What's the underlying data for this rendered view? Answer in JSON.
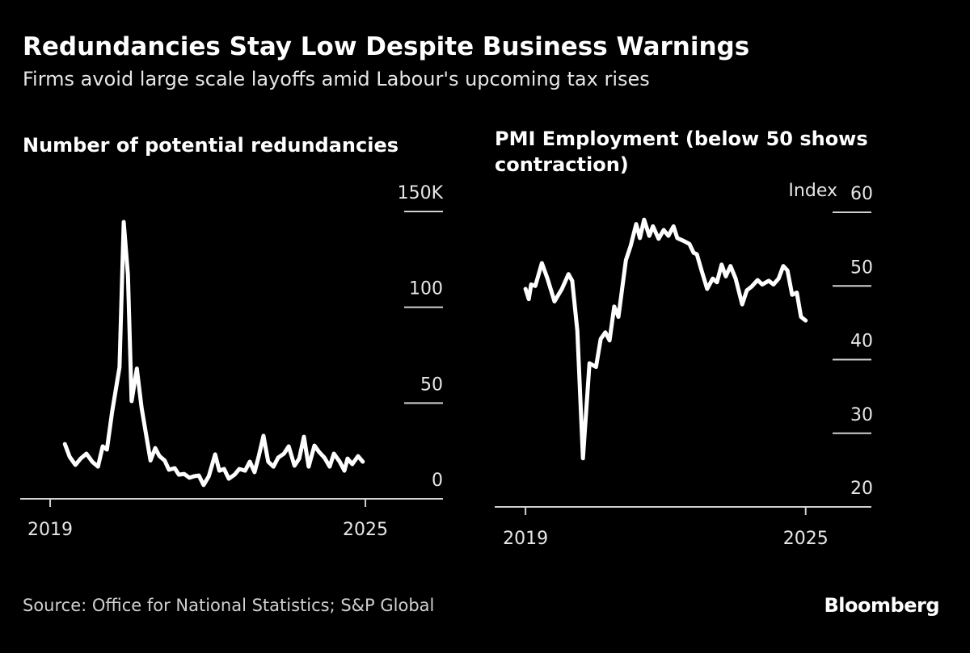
{
  "title": "Redundancies Stay Low Despite Business Warnings",
  "subtitle": "Firms avoid large scale layoffs amid Labour's upcoming tax rises",
  "source": "Source: Office for National Statistics; S&P Global",
  "logo": "Bloomberg",
  "chart_data": [
    {
      "type": "line",
      "title": "Number of potential redundancies",
      "color": "#ffffff",
      "xlim": [
        2018.43,
        2026.43
      ],
      "xticks": [
        2019,
        2025
      ],
      "ylim": [
        0,
        150
      ],
      "yticks": [
        0,
        50,
        100,
        {
          "value": 150,
          "label": "150K"
        }
      ],
      "x": [
        2019.28,
        2019.37,
        2019.48,
        2019.58,
        2019.69,
        2019.8,
        2019.91,
        2020.0,
        2020.08,
        2020.18,
        2020.32,
        2020.4,
        2020.48,
        2020.55,
        2020.65,
        2020.74,
        2020.83,
        2020.91,
        2021.0,
        2021.08,
        2021.18,
        2021.26,
        2021.37,
        2021.45,
        2021.55,
        2021.65,
        2021.74,
        2021.83,
        2021.92,
        2022.02,
        2022.14,
        2022.22,
        2022.31,
        2022.4,
        2022.51,
        2022.6,
        2022.71,
        2022.8,
        2022.89,
        2022.97,
        2023.06,
        2023.15,
        2023.25,
        2023.34,
        2023.45,
        2023.54,
        2023.65,
        2023.74,
        2023.83,
        2023.92,
        2024.03,
        2024.12,
        2024.22,
        2024.32,
        2024.4,
        2024.51,
        2024.6,
        2024.66,
        2024.75,
        2024.86,
        2024.95
      ],
      "values": [
        28.6,
        22,
        17.7,
        21,
        23.6,
        19.4,
        16.8,
        27.4,
        25.7,
        45.5,
        68.7,
        144.5,
        117,
        51,
        68,
        47.6,
        32.9,
        20,
        26.5,
        22.3,
        20,
        15.2,
        16,
        12.6,
        13,
        11,
        11.8,
        12.2,
        7.2,
        11.8,
        23.2,
        14.7,
        15.6,
        10.5,
        12.6,
        15.6,
        14.7,
        19.4,
        13.9,
        22.3,
        32.9,
        19.4,
        16.8,
        21.5,
        23.6,
        27.4,
        17.3,
        21,
        32.4,
        16.8,
        27.8,
        24.4,
        21.5,
        16.8,
        23.6,
        19.4,
        14.7,
        21,
        18.1,
        22.3,
        19.4
      ]
    },
    {
      "type": "line",
      "title": "PMI Employment (below 50 shows contraction)",
      "y_label": "Index",
      "color": "#ffffff",
      "xlim": [
        2018.34,
        2026.39
      ],
      "xticks": [
        2019,
        2025
      ],
      "ylim": [
        20,
        60
      ],
      "yticks": [
        20,
        30,
        40,
        50,
        60
      ],
      "x": [
        2019.0,
        2019.07,
        2019.12,
        2019.21,
        2019.35,
        2019.47,
        2019.62,
        2019.78,
        2019.92,
        2020.0,
        2020.11,
        2020.23,
        2020.37,
        2020.51,
        2020.61,
        2020.71,
        2020.8,
        2020.9,
        2020.99,
        2021.15,
        2021.25,
        2021.37,
        2021.45,
        2021.54,
        2021.65,
        2021.73,
        2021.85,
        2021.96,
        2022.06,
        2022.17,
        2022.25,
        2022.39,
        2022.51,
        2022.6,
        2022.67,
        2022.77,
        2022.89,
        2023.01,
        2023.1,
        2023.2,
        2023.29,
        2023.39,
        2023.5,
        2023.64,
        2023.74,
        2023.84,
        2023.97,
        2024.07,
        2024.21,
        2024.31,
        2024.42,
        2024.52,
        2024.61,
        2024.71,
        2024.81,
        2024.9,
        2025.0
      ],
      "values": [
        49.6,
        48.2,
        50.2,
        50.0,
        53.1,
        51.0,
        47.9,
        49.6,
        51.6,
        50.7,
        43.9,
        26.6,
        39.5,
        39.0,
        42.8,
        43.7,
        42.6,
        47.2,
        45.8,
        53.5,
        55.4,
        58.4,
        56.5,
        59.0,
        56.8,
        58.1,
        56.4,
        57.6,
        56.8,
        58.1,
        56.5,
        56.1,
        55.7,
        54.5,
        54.3,
        52.1,
        49.6,
        51.0,
        50.5,
        52.9,
        51.3,
        52.7,
        51.0,
        47.5,
        49.4,
        49.9,
        50.8,
        50.2,
        50.7,
        50.2,
        51.0,
        52.7,
        52.1,
        48.8,
        49.1,
        45.8,
        45.3
      ]
    }
  ]
}
